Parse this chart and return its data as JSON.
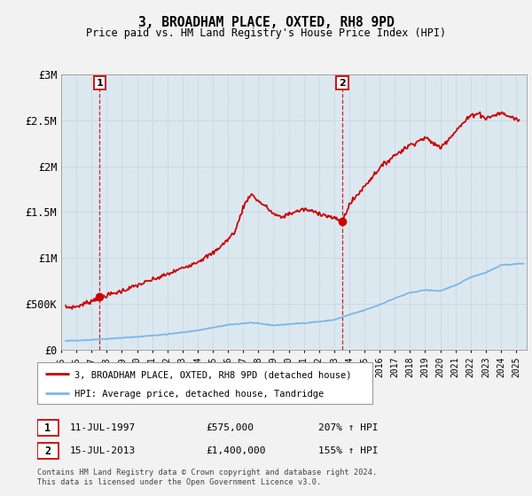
{
  "title": "3, BROADHAM PLACE, OXTED, RH8 9PD",
  "subtitle": "Price paid vs. HM Land Registry's House Price Index (HPI)",
  "ylabel_ticks": [
    "£0",
    "£500K",
    "£1M",
    "£1.5M",
    "£2M",
    "£2.5M",
    "£3M"
  ],
  "ytick_values": [
    0,
    500000,
    1000000,
    1500000,
    2000000,
    2500000,
    3000000
  ],
  "ylim": [
    0,
    3000000
  ],
  "xlim_start": 1995.3,
  "xlim_end": 2025.7,
  "sale1_x": 1997.53,
  "sale1_y": 575000,
  "sale1_label": "1",
  "sale1_date": "11-JUL-1997",
  "sale1_price": "£575,000",
  "sale1_hpi": "207% ↑ HPI",
  "sale2_x": 2013.54,
  "sale2_y": 1400000,
  "sale2_label": "2",
  "sale2_date": "15-JUL-2013",
  "sale2_price": "£1,400,000",
  "sale2_hpi": "155% ↑ HPI",
  "legend_line1": "3, BROADHAM PLACE, OXTED, RH8 9PD (detached house)",
  "legend_line2": "HPI: Average price, detached house, Tandridge",
  "footer": "Contains HM Land Registry data © Crown copyright and database right 2024.\nThis data is licensed under the Open Government Licence v3.0.",
  "hpi_color": "#7ab8e8",
  "price_color": "#cc0000",
  "fig_bg": "#f2f2f2",
  "plot_bg": "#dce8f0",
  "xtick_years": [
    1995,
    1996,
    1997,
    1998,
    1999,
    2000,
    2001,
    2002,
    2003,
    2004,
    2005,
    2006,
    2007,
    2008,
    2009,
    2010,
    2011,
    2012,
    2013,
    2014,
    2015,
    2016,
    2017,
    2018,
    2019,
    2020,
    2021,
    2022,
    2023,
    2024,
    2025
  ]
}
